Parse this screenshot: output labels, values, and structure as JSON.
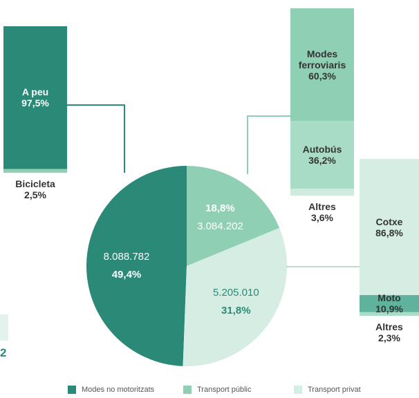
{
  "chart_data": {
    "type": "pie",
    "cut_off_text": "2",
    "slices": [
      {
        "name": "Modes no motoritzats",
        "color": "#2a8a77",
        "value": 49.4,
        "value_label": "49,4%",
        "count": 8088782,
        "count_label": "8.088.782",
        "breakdown": [
          {
            "name": "A peu",
            "value": 97.5,
            "value_label": "97,5%",
            "color": "#2a8a77"
          },
          {
            "name": "Bicicleta",
            "value": 2.5,
            "value_label": "2,5%",
            "color": "#8fd0b5"
          }
        ]
      },
      {
        "name": "Transport públic",
        "color": "#8fd0b5",
        "value": 18.8,
        "value_label": "18,8%",
        "count": 3084202,
        "count_label": "3.084.202",
        "breakdown": [
          {
            "name": "Modes ferroviaris",
            "value": 60.3,
            "value_label": "60,3%",
            "color": "#8fd0b5"
          },
          {
            "name": "Autobús",
            "value": 36.2,
            "value_label": "36,2%",
            "color": "#a9dcc6"
          },
          {
            "name": "Altres",
            "value": 3.6,
            "value_label": "3,6%",
            "color": "#cfeadf"
          }
        ]
      },
      {
        "name": "Transport privat",
        "color": "#d6ede3",
        "value": 31.8,
        "value_label": "31,8%",
        "count": 5205010,
        "count_label": "5.205.010",
        "breakdown": [
          {
            "name": "Cotxe",
            "value": 86.8,
            "value_label": "86,8%",
            "color": "#d6ede3"
          },
          {
            "name": "Moto",
            "value": 10.9,
            "value_label": "10,9%",
            "color": "#5fb39c"
          },
          {
            "name": "Altres",
            "value": 2.3,
            "value_label": "2,3%",
            "color": "#a9dcc6"
          }
        ]
      }
    ]
  }
}
